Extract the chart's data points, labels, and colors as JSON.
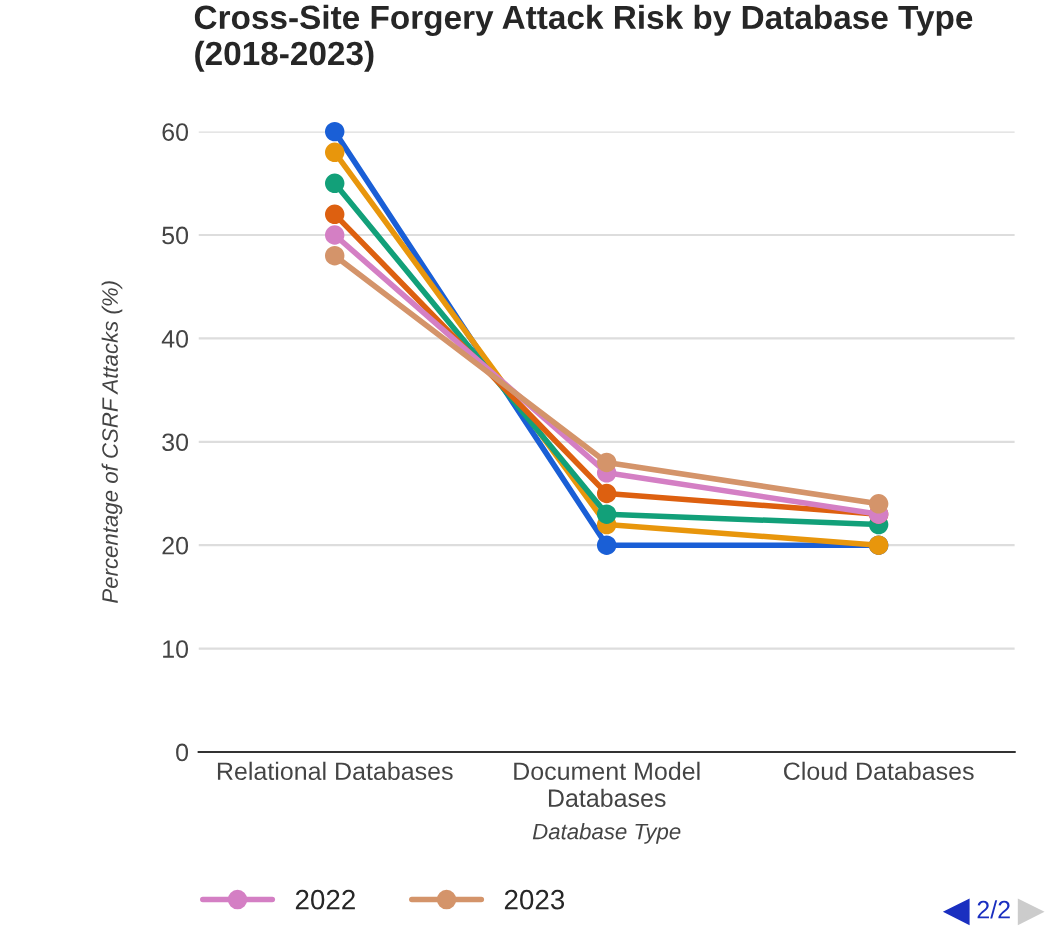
{
  "chart_data": {
    "type": "line",
    "title": "Cross-Site Forgery Attack Risk by Database Type\n(2018-2023)",
    "xlabel": "Database Type",
    "ylabel": "Percentage of CSRF Attacks (%)",
    "categories": [
      "Relational Databases",
      "Document Model\nDatabases",
      "Cloud Databases"
    ],
    "series": [
      {
        "color": "#1a5fd6",
        "values": [
          60,
          20,
          20
        ]
      },
      {
        "color": "#e8960c",
        "values": [
          58,
          22,
          20
        ]
      },
      {
        "color": "#12a079",
        "values": [
          55,
          23,
          22
        ]
      },
      {
        "color": "#dd6010",
        "values": [
          52,
          25,
          23
        ]
      },
      {
        "name": "2022",
        "color": "#d47fc4",
        "values": [
          50,
          27,
          23
        ]
      },
      {
        "name": "2023",
        "color": "#d4946a",
        "values": [
          48,
          28,
          24
        ]
      }
    ],
    "ylim": [
      0,
      60
    ],
    "yticks": [
      0,
      10,
      20,
      30,
      40,
      50,
      60
    ],
    "grid": "y",
    "legend": "bottom",
    "marker": "circle",
    "line_style": "solid",
    "annotations": [
      "2/2"
    ]
  }
}
